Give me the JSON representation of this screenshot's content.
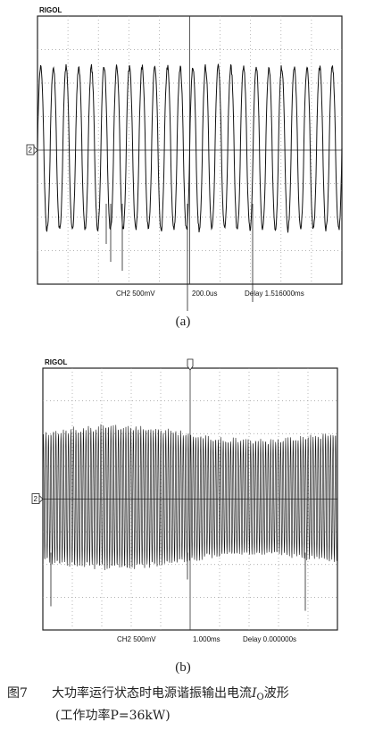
{
  "figure": {
    "panels": [
      {
        "brand": "RIGOL",
        "marker": "2",
        "channel": "CH2 500mV",
        "timebase": "200.0us",
        "delay": "Delay 1.516000ms",
        "label": "(a)"
      },
      {
        "brand": "RIGOL",
        "marker": "2",
        "channel": "CH2 500mV",
        "timebase": "1.000ms",
        "delay": "Delay 0.000000s",
        "label": "(b)"
      }
    ],
    "caption": {
      "number": "图7",
      "text": "大功率运行状态时电源谐振输出电流",
      "symbol": "I",
      "subscript": "O",
      "suffix": "波形",
      "note": "(工作功率P=36kW)"
    }
  }
}
